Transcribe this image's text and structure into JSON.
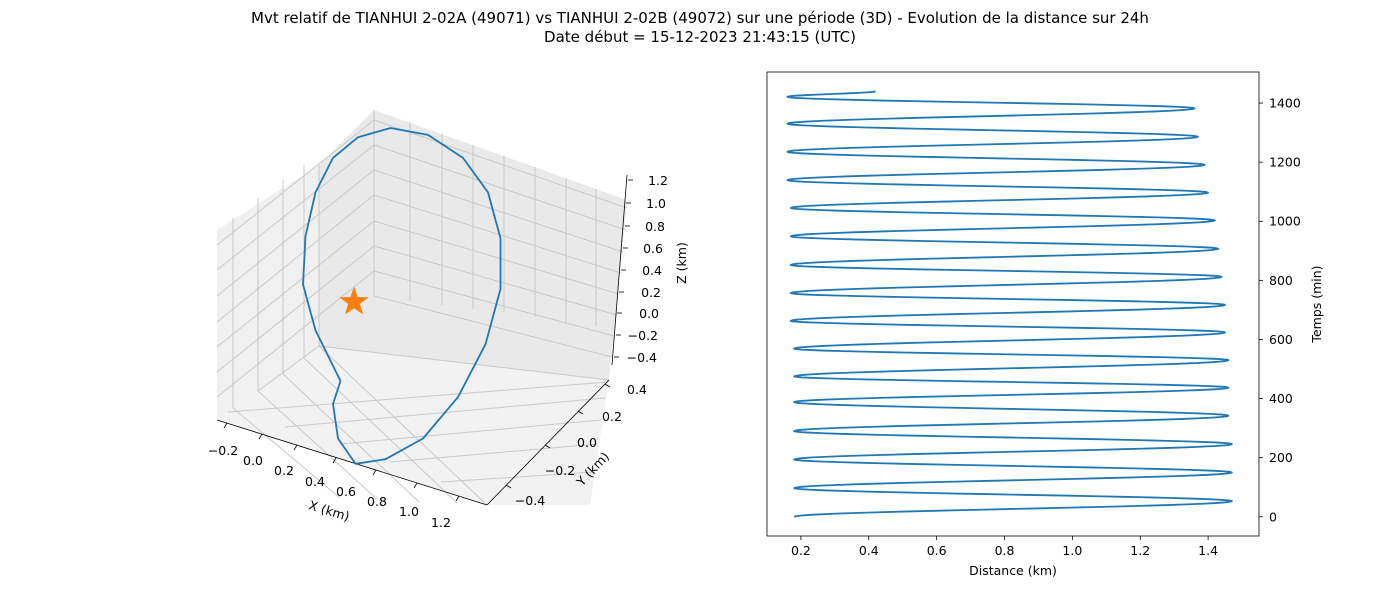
{
  "figure": {
    "title_line1": "Mvt relatif de TIANHUI 2-02A (49071) vs TIANHUI 2-02B (49072) sur une période (3D) - Evolution de la distance sur 24h",
    "title_line2": "Date début = 15-12-2023 21:43:15 (UTC)"
  },
  "colors": {
    "line": "#1f77b4",
    "marker": "#ff7f0e",
    "pane": "#f2f2f2",
    "grid": "#c8c8c8"
  },
  "chart_data": [
    {
      "type": "line",
      "projection": "3d",
      "xlabel": "X (km)",
      "ylabel": "Y (km)",
      "zlabel": "Z (km)",
      "x_ticks": [
        "−0.2",
        "0.0",
        "0.2",
        "0.4",
        "0.6",
        "0.8",
        "1.0",
        "1.2"
      ],
      "y_ticks": [
        "−0.4",
        "−0.2",
        "0.0",
        "0.2",
        "0.4"
      ],
      "z_ticks": [
        "−0.4",
        "−0.2",
        "0.0",
        "0.2",
        "0.4",
        "0.6",
        "0.8",
        "1.0",
        "1.2"
      ],
      "grid": true,
      "series": [
        {
          "marker": "line",
          "orbit_path_view": [
            [
              0.55,
              0.3
            ],
            [
              0.45,
              0.52
            ],
            [
              0.4,
              0.72
            ],
            [
              0.41,
              0.93
            ],
            [
              0.45,
              1.12
            ],
            [
              0.52,
              1.27
            ],
            [
              0.62,
              1.36
            ],
            [
              0.75,
              1.4
            ],
            [
              0.9,
              1.37
            ],
            [
              1.04,
              1.27
            ],
            [
              1.14,
              1.12
            ],
            [
              1.19,
              0.92
            ],
            [
              1.19,
              0.7
            ],
            [
              1.13,
              0.46
            ],
            [
              1.02,
              0.23
            ],
            [
              0.88,
              0.05
            ],
            [
              0.73,
              -0.04
            ],
            [
              0.61,
              -0.06
            ],
            [
              0.54,
              0.05
            ],
            [
              0.52,
              0.2
            ],
            [
              0.55,
              0.3
            ]
          ]
        },
        {
          "marker": "star",
          "point": [
            0,
            0,
            0
          ]
        }
      ]
    },
    {
      "type": "line",
      "xlabel": "Distance (km)",
      "ylabel": "Temps (min)",
      "x_ticks": [
        0.2,
        0.4,
        0.6,
        0.8,
        1.0,
        1.2,
        1.4
      ],
      "y_ticks": [
        0,
        200,
        400,
        600,
        800,
        1000,
        1200,
        1400
      ],
      "xlim": [
        0.1,
        1.55
      ],
      "ylim": [
        -65,
        1505
      ],
      "grid": false,
      "series": [
        {
          "points": [
            [
              0.18,
              0
            ],
            [
              1.47,
              53
            ],
            [
              0.18,
              97
            ],
            [
              1.47,
              150
            ],
            [
              0.18,
              194
            ],
            [
              1.47,
              246
            ],
            [
              0.18,
              290
            ],
            [
              1.46,
              342
            ],
            [
              0.18,
              388
            ],
            [
              1.46,
              437
            ],
            [
              0.18,
              475
            ],
            [
              1.46,
              530
            ],
            [
              0.18,
              569
            ],
            [
              1.45,
              624
            ],
            [
              0.17,
              663
            ],
            [
              1.45,
              717
            ],
            [
              0.17,
              757
            ],
            [
              1.44,
              812
            ],
            [
              0.17,
              852
            ],
            [
              1.43,
              907
            ],
            [
              0.17,
              949
            ],
            [
              1.42,
              1003
            ],
            [
              0.17,
              1045
            ],
            [
              1.4,
              1097
            ],
            [
              0.16,
              1139
            ],
            [
              1.39,
              1191
            ],
            [
              0.16,
              1235
            ],
            [
              1.37,
              1286
            ],
            [
              0.16,
              1330
            ],
            [
              1.36,
              1382
            ],
            [
              0.16,
              1421
            ],
            [
              0.42,
              1440
            ]
          ]
        }
      ]
    }
  ]
}
